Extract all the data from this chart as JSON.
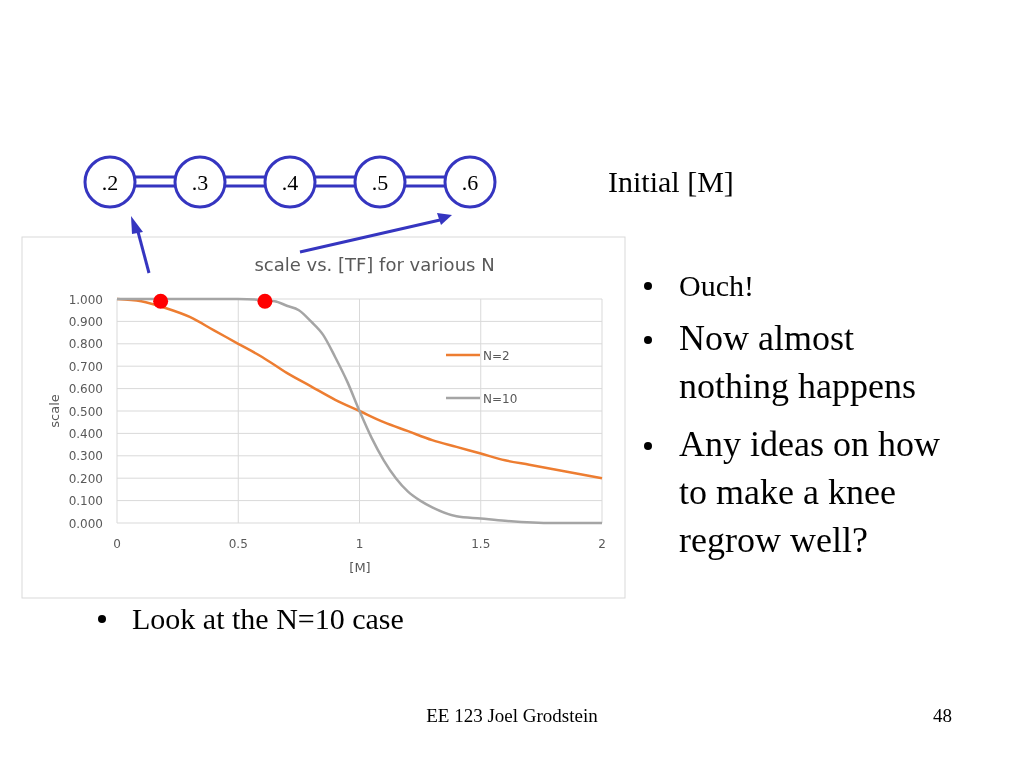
{
  "chart_data": {
    "type": "line",
    "title": "scale vs. [TF] for various N",
    "xlabel": "[M]",
    "ylabel": "scale",
    "xlim": [
      0,
      2
    ],
    "xticks": [
      0,
      0.5,
      1,
      1.5,
      2
    ],
    "ylim": [
      0,
      1
    ],
    "yticks": [
      {
        "value": 0,
        "label": "0.000"
      },
      {
        "value": 0.1,
        "label": "0.100"
      },
      {
        "value": 0.2,
        "label": "0.200"
      },
      {
        "value": 0.3,
        "label": "0.300"
      },
      {
        "value": 0.4,
        "label": "0.400"
      },
      {
        "value": 0.5,
        "label": "0.500"
      },
      {
        "value": 0.6,
        "label": "0.600"
      },
      {
        "value": 0.7,
        "label": "0.700"
      },
      {
        "value": 0.8,
        "label": "0.800"
      },
      {
        "value": 0.9,
        "label": "0.900"
      },
      {
        "value": 1,
        "label": "1.000"
      }
    ],
    "grid": true,
    "legend": "right",
    "marker": "none",
    "line_style": "solid",
    "series": [
      {
        "name": "N=2",
        "color": "#ed7d31",
        "x": [
          0,
          0.1,
          0.2,
          0.3,
          0.4,
          0.5,
          0.6,
          0.7,
          0.8,
          0.9,
          1,
          1.1,
          1.2,
          1.3,
          1.4,
          1.5,
          1.6,
          1.7,
          1.8,
          1.9,
          2
        ],
        "values": [
          1,
          0.99,
          0.96,
          0.92,
          0.86,
          0.8,
          0.74,
          0.67,
          0.61,
          0.55,
          0.5,
          0.45,
          0.41,
          0.37,
          0.34,
          0.31,
          0.28,
          0.26,
          0.24,
          0.22,
          0.2
        ]
      },
      {
        "name": "N=10",
        "color": "#a5a5a5",
        "x": [
          0,
          0.3,
          0.5,
          0.65,
          0.7,
          0.75,
          0.8,
          0.85,
          0.9,
          0.95,
          1,
          1.05,
          1.1,
          1.15,
          1.2,
          1.25,
          1.3,
          1.4,
          1.5,
          1.6,
          1.8,
          2
        ],
        "values": [
          1,
          1,
          1,
          0.99,
          0.97,
          0.95,
          0.9,
          0.84,
          0.74,
          0.63,
          0.5,
          0.38,
          0.28,
          0.2,
          0.14,
          0.1,
          0.07,
          0.03,
          0.02,
          0.01,
          0,
          0
        ]
      },
      {
        "type": "scatter",
        "color": "#ff0000",
        "marker": "circle",
        "x": [
          0.18,
          0.61
        ],
        "values": [
          0.99,
          0.99
        ]
      }
    ],
    "annotations": [
      ".2",
      ".3",
      ".4",
      ".5",
      ".6",
      "Initial [M]",
      "Ouch!",
      "Now almost nothing happens",
      "Any ideas on how to make a knee regrow well?",
      "Look at the N=10 case",
      "EE 123 Joel Grodstein",
      "48"
    ]
  }
}
